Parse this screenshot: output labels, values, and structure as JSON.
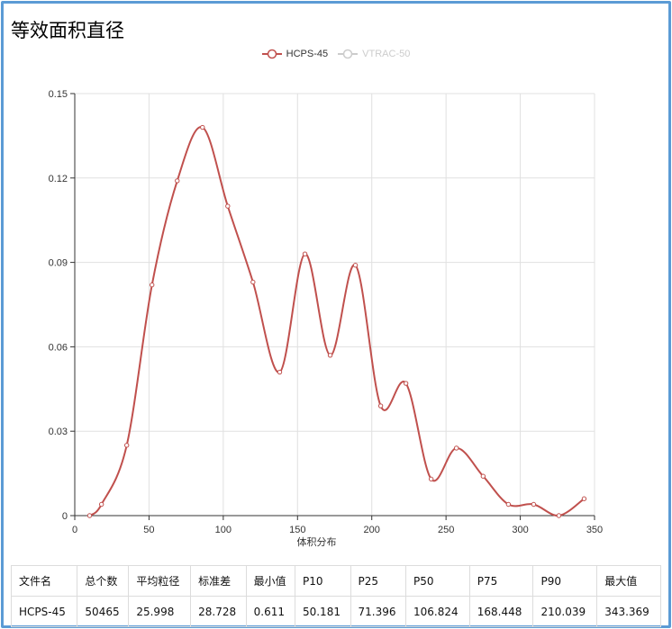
{
  "page": {
    "title": "等效面积直径"
  },
  "legend": [
    {
      "name": "HCPS-45",
      "color": "#c0504d",
      "active": true
    },
    {
      "name": "VTRAC-50",
      "color": "#cccccc",
      "active": false
    }
  ],
  "chart_data": {
    "type": "line",
    "smooth": true,
    "xlabel": "体积分布",
    "ylabel": "",
    "xlim": [
      0,
      350
    ],
    "ylim": [
      0,
      0.15
    ],
    "xticks": [
      "0",
      "50",
      "100",
      "150",
      "200",
      "250",
      "300",
      "350"
    ],
    "yticks": [
      "0",
      "0.03",
      "0.06",
      "0.09",
      "0.12",
      "0.15"
    ],
    "grid": true,
    "legend_position": "top-center",
    "series": [
      {
        "name": "HCPS-45",
        "color": "#c0504d",
        "x": [
          10,
          18,
          35,
          52,
          69,
          86,
          103,
          120,
          138,
          155,
          172,
          189,
          206,
          223,
          240,
          257,
          275,
          292,
          309,
          326,
          343
        ],
        "y": [
          0.0,
          0.004,
          0.025,
          0.082,
          0.119,
          0.138,
          0.11,
          0.083,
          0.051,
          0.093,
          0.057,
          0.089,
          0.039,
          0.047,
          0.013,
          0.024,
          0.014,
          0.004,
          0.004,
          0.0,
          0.006
        ]
      }
    ]
  },
  "stats_table": {
    "headers": [
      "文件名",
      "总个数",
      "平均粒径",
      "标准差",
      "最小值",
      "P10",
      "P25",
      "P50",
      "P75",
      "P90",
      "最大值"
    ],
    "rows": [
      [
        "HCPS-45",
        "50465",
        "25.998",
        "28.728",
        "0.611",
        "50.181",
        "71.396",
        "106.824",
        "168.448",
        "210.039",
        "343.369"
      ]
    ]
  }
}
